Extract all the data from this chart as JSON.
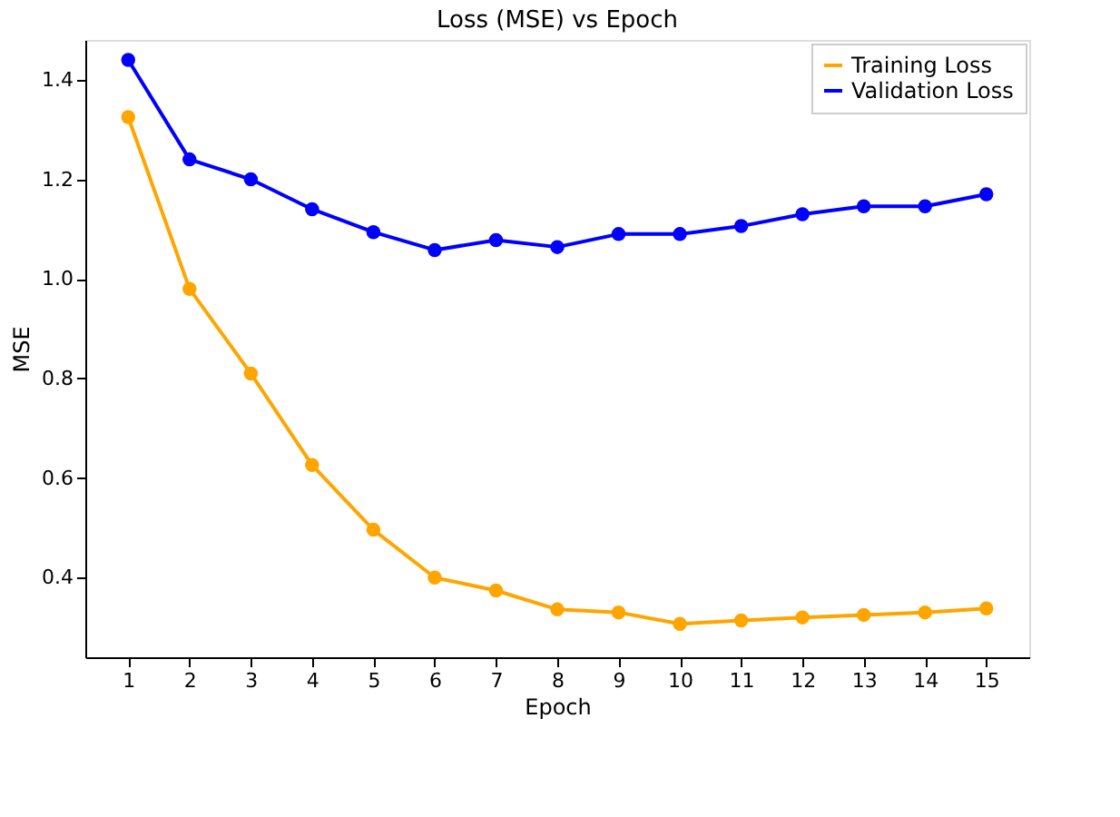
{
  "chart_data": {
    "type": "line",
    "title": "Loss (MSE) vs Epoch",
    "xlabel": "Epoch",
    "ylabel": "MSE",
    "x": [
      1,
      2,
      3,
      4,
      5,
      6,
      7,
      8,
      9,
      10,
      11,
      12,
      13,
      14,
      15
    ],
    "series": [
      {
        "name": "Training Loss",
        "color": "#ffa500",
        "values": [
          1.325,
          0.98,
          0.81,
          0.626,
          0.496,
          0.4,
          0.374,
          0.336,
          0.33,
          0.307,
          0.314,
          0.32,
          0.325,
          0.33,
          0.338
        ]
      },
      {
        "name": "Validation Loss",
        "color": "#0000ff",
        "values": [
          1.44,
          1.24,
          1.2,
          1.14,
          1.094,
          1.058,
          1.078,
          1.064,
          1.09,
          1.09,
          1.106,
          1.13,
          1.146,
          1.146,
          1.17
        ]
      }
    ],
    "xlim": [
      0.3,
      15.7
    ],
    "ylim": [
      0.24,
      1.48
    ],
    "xticks": [
      1,
      2,
      3,
      4,
      5,
      6,
      7,
      8,
      9,
      10,
      11,
      12,
      13,
      14,
      15
    ],
    "yticks": [
      0.4,
      0.6,
      0.8,
      {
        "value": 1.0,
        "label": "1.0"
      },
      1.2,
      1.4
    ],
    "grid": false,
    "legend": "top right",
    "marker": "circle",
    "line_style": "solid"
  }
}
